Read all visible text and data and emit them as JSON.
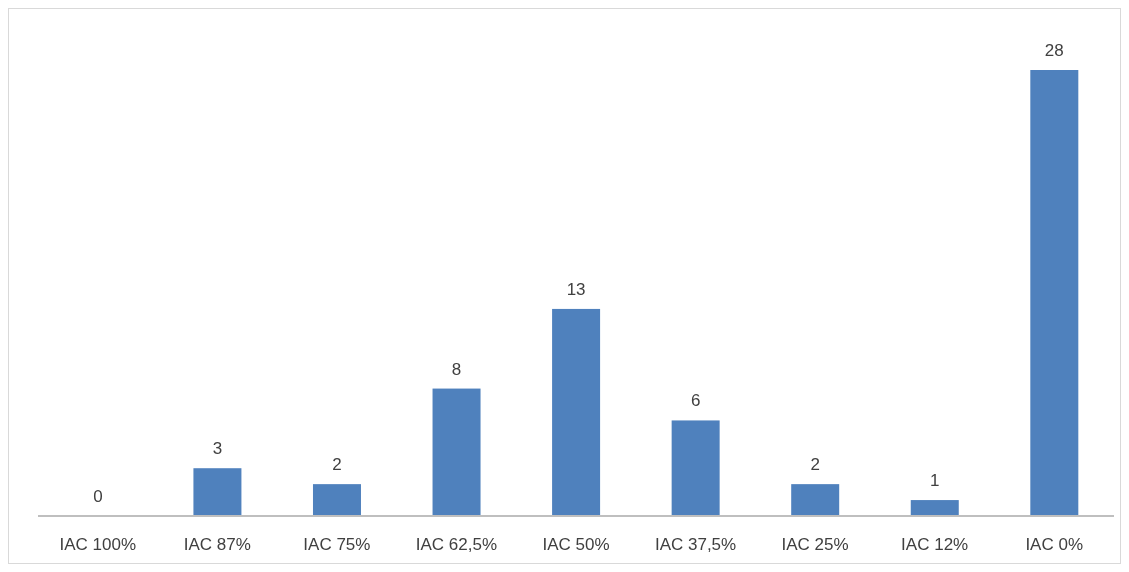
{
  "chart_data": {
    "type": "bar",
    "categories": [
      "IAC 100%",
      "IAC 87%",
      "IAC 75%",
      "IAC 62,5%",
      "IAC 50%",
      "IAC 37,5%",
      "IAC 25%",
      "IAC 12%",
      "IAC 0%"
    ],
    "values": [
      0,
      3,
      2,
      8,
      13,
      6,
      2,
      1,
      28
    ],
    "color": "#4f81bd",
    "data_labels": true,
    "grid": false,
    "legend": false
  }
}
